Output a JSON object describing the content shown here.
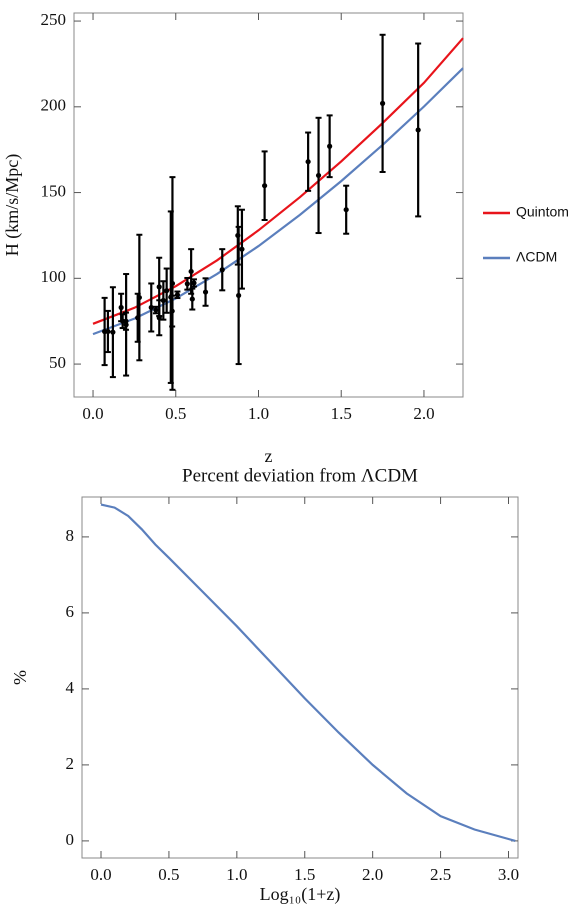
{
  "chart_data": [
    {
      "type": "line",
      "xlabel": "z",
      "ylabel": "H (km/s/Mpc)",
      "legend": "right",
      "grid": false,
      "xlim": [
        -0.115,
        2.236
      ],
      "ylim": [
        30.8,
        254.7
      ],
      "xticks": [
        {
          "value": 0,
          "label": "0.0"
        },
        0.5,
        {
          "value": 1,
          "label": "1.0"
        },
        1.5,
        {
          "value": 2,
          "label": "2.0"
        }
      ],
      "yticks": [
        50,
        100,
        150,
        200,
        250
      ],
      "series": [
        {
          "name": "Quintom",
          "color": "#e8141b",
          "x": [
            0,
            0.25,
            0.5,
            0.75,
            1.0,
            1.25,
            1.5,
            1.75,
            2.0,
            2.236
          ],
          "values": [
            73.5,
            82.8,
            95.4,
            110.5,
            128.0,
            147.3,
            168.2,
            190.5,
            214.0,
            240.0
          ]
        },
        {
          "name": "ΛCDM",
          "color": "#5b7fbd",
          "x": [
            0,
            0.25,
            0.5,
            0.75,
            1.0,
            1.25,
            1.5,
            1.75,
            2.0,
            2.236
          ],
          "values": [
            67.5,
            76.5,
            88.3,
            102.6,
            118.8,
            137.0,
            156.7,
            177.8,
            200.2,
            222.5
          ]
        }
      ],
      "points": {
        "color": "#000000",
        "x": [
          0.07,
          0.09,
          0.12,
          0.17,
          0.179,
          0.199,
          0.2,
          0.27,
          0.28,
          0.352,
          0.38,
          0.4,
          0.4004,
          0.425,
          0.445,
          0.47,
          0.4783,
          0.48,
          0.51,
          0.57,
          0.593,
          0.6,
          0.61,
          0.68,
          0.781,
          0.875,
          0.88,
          0.9,
          1.037,
          1.3,
          1.363,
          1.43,
          1.53,
          1.75,
          1.965
        ],
        "values": [
          69,
          69,
          68.6,
          83,
          75,
          75,
          72.9,
          77,
          88.8,
          83,
          81.5,
          95,
          77,
          87.1,
          92.8,
          89,
          80.9,
          97,
          90.4,
          96.8,
          104,
          87.9,
          97.3,
          92,
          105,
          125,
          90,
          117,
          154,
          168,
          160,
          177,
          140,
          202,
          186.5
        ],
        "errors": [
          19.6,
          12,
          26.2,
          8,
          4,
          5,
          29.6,
          14,
          36.6,
          14,
          1.9,
          17,
          10.2,
          11.2,
          12.9,
          50,
          9,
          62,
          1.9,
          3.4,
          13,
          6.1,
          2.1,
          8,
          12,
          17,
          40,
          23,
          20,
          17,
          33.6,
          18,
          14,
          40,
          50.4
        ]
      }
    },
    {
      "type": "line",
      "title": "Percent deviation from ΛCDM",
      "xlabel": "Log₁₀(1+z)",
      "ylabel": "%",
      "grid": false,
      "xlim": [
        -0.14,
        3.07
      ],
      "ylim": [
        -0.45,
        9.05
      ],
      "xticks": [
        {
          "value": 0,
          "label": "0.0"
        },
        0.5,
        {
          "value": 1,
          "label": "1.0"
        },
        1.5,
        {
          "value": 2,
          "label": "2.0"
        },
        2.5,
        {
          "value": 3,
          "label": "3.0"
        }
      ],
      "yticks": [
        0,
        2,
        4,
        6,
        8
      ],
      "series": [
        {
          "color": "#5b7fbd",
          "x": [
            0,
            0.1,
            0.2,
            0.3,
            0.4,
            0.5,
            0.75,
            1.0,
            1.25,
            1.5,
            1.75,
            2.0,
            2.25,
            2.5,
            2.75,
            3.0,
            3.05
          ],
          "values": [
            8.85,
            8.77,
            8.55,
            8.2,
            7.8,
            7.45,
            6.55,
            5.65,
            4.7,
            3.75,
            2.85,
            2.0,
            1.25,
            0.65,
            0.3,
            0.05,
            0
          ]
        }
      ]
    }
  ]
}
